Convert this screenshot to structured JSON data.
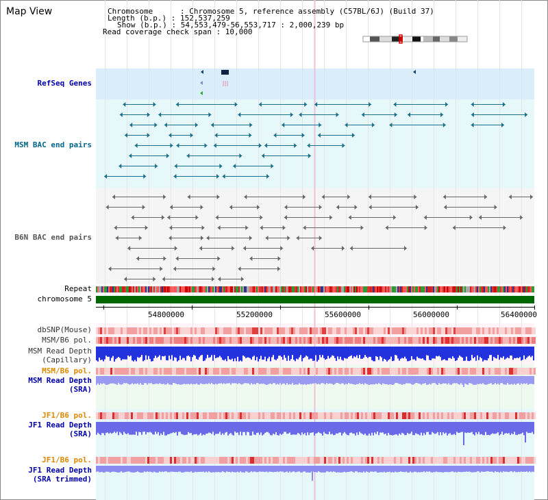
{
  "app": {
    "title": "Map View"
  },
  "info": {
    "lines": [
      "Chromosome      : Chromosome 5, reference assembly (C57BL/6J) (Build 37)",
      "Length (b.p.) : 152,537,259",
      "Show (b.p.) : 54,553,479-56,553,717 : 2,000,239 bp",
      "Read coverage check span : 10,000"
    ]
  },
  "tracks": {
    "refseq": {
      "label": "RefSeq Genes",
      "color": "#0000aa"
    },
    "msm_bac": {
      "label": "MSM BAC end pairs",
      "color": "#006688"
    },
    "b6n_bac": {
      "label": "B6N BAC end pairs",
      "color": "#555555"
    },
    "repeat": {
      "label": "Repeat"
    },
    "chromosome": {
      "label": "chromosome 5",
      "color": "#006600"
    },
    "dbsnp": {
      "label": "dbSNP(Mouse)"
    },
    "msm_b6_pol": {
      "label": "MSM/B6 pol."
    },
    "msm_read_cap": {
      "label1": "MSM Read Depth",
      "label2": "(Capillary)"
    },
    "msm_b6_pol2": {
      "label": "MSM/B6 pol.",
      "color": "#dd8800"
    },
    "msm_read_sra": {
      "label1": "MSM Read Depth",
      "label2": "(SRA)",
      "color": "#0000aa"
    },
    "jf1_b6_pol": {
      "label": "JF1/B6 pol.",
      "color": "#dd8800"
    },
    "jf1_read_sra": {
      "label1": "JF1 Read Depth",
      "label2": "(SRA)",
      "color": "#0000aa"
    },
    "jf1_b6_pol2": {
      "label": "JF1/B6 pol.",
      "color": "#dd8800"
    },
    "jf1_read_trim": {
      "label1": "JF1 Read Depth",
      "label2": "(SRA trimmed)",
      "color": "#0000aa"
    }
  },
  "axis": {
    "ticks": [
      "54800000",
      "55200000",
      "55600000",
      "56000000",
      "56400000"
    ]
  }
}
